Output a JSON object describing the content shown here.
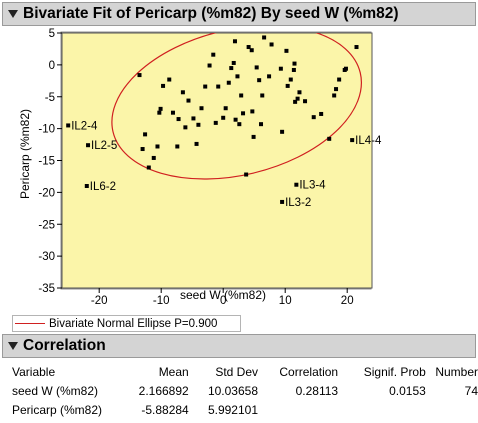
{
  "fit_section": {
    "title": "Bivariate Fit of Pericarp (%m82) By seed W  (%m82)",
    "disclosure_icon": "triangle-down-icon"
  },
  "plot": {
    "background": "#fbf5a9",
    "ellipse_color": "#d02020",
    "point_color": "#000000"
  },
  "chart_data": {
    "type": "scatter",
    "title": "Bivariate Fit of Pericarp (%m82) By seed W  (%m82)",
    "xlabel": "seed W  (%m82)",
    "ylabel": "Pericarp (%m82)",
    "xlim": [
      -26,
      24
    ],
    "ylim": [
      -35,
      5
    ],
    "xticks": [
      -20,
      -10,
      0,
      10,
      20
    ],
    "yticks": [
      -35,
      -30,
      -25,
      -20,
      -15,
      -10,
      -5,
      0,
      5
    ],
    "grid": false,
    "ellipse": {
      "label": "Bivariate Normal Ellipse P=0.900",
      "center": [
        2.17,
        -5.88
      ],
      "semi_major": 20.5,
      "semi_minor": 11.4,
      "angle_deg": 13.5
    },
    "labeled_points": [
      {
        "x": -25.0,
        "y": -9.5,
        "label": "IL2-4"
      },
      {
        "x": -21.8,
        "y": -12.6,
        "label": "IL2-5"
      },
      {
        "x": -22.0,
        "y": -19.0,
        "label": "IL6-2"
      },
      {
        "x": 20.8,
        "y": -11.8,
        "label": "IL4-4"
      },
      {
        "x": 11.8,
        "y": -18.8,
        "label": "IL3-4"
      },
      {
        "x": 9.5,
        "y": -21.5,
        "label": "IL3-2"
      }
    ],
    "points": [
      [
        21.5,
        2.8
      ],
      [
        19.8,
        -0.6
      ],
      [
        19.6,
        -0.8
      ],
      [
        18.7,
        -2.3
      ],
      [
        18.2,
        -3.8
      ],
      [
        17.9,
        -4.8
      ],
      [
        17.1,
        -11.6
      ],
      [
        15.8,
        -7.7
      ],
      [
        14.6,
        -8.2
      ],
      [
        13.2,
        -5.7
      ],
      [
        12.3,
        -4.3
      ],
      [
        12.0,
        -5.3
      ],
      [
        11.6,
        -5.8
      ],
      [
        11.4,
        -0.8
      ],
      [
        11.5,
        0.2
      ],
      [
        10.9,
        -2.3
      ],
      [
        10.4,
        -3.3
      ],
      [
        10.2,
        2.2
      ],
      [
        9.5,
        -10.5
      ],
      [
        9.3,
        -0.6
      ],
      [
        7.8,
        3.2
      ],
      [
        7.4,
        -1.8
      ],
      [
        6.6,
        4.3
      ],
      [
        6.3,
        -4.8
      ],
      [
        6.1,
        -9.3
      ],
      [
        5.8,
        -2.4
      ],
      [
        5.4,
        -0.4
      ],
      [
        4.9,
        -11.3
      ],
      [
        4.7,
        -7.3
      ],
      [
        4.6,
        2.3
      ],
      [
        4.1,
        2.8
      ],
      [
        3.7,
        -17.2
      ],
      [
        3.2,
        -7.6
      ],
      [
        2.9,
        -4.8
      ],
      [
        2.6,
        -9.3
      ],
      [
        2.3,
        -1.8
      ],
      [
        2.0,
        -8.6
      ],
      [
        1.9,
        3.7
      ],
      [
        1.7,
        0.3
      ],
      [
        1.3,
        -0.5
      ],
      [
        0.9,
        -2.8
      ],
      [
        0.4,
        -6.8
      ],
      [
        0.0,
        -8.3
      ],
      [
        -0.8,
        -3.4
      ],
      [
        -1.2,
        -9.1
      ],
      [
        -1.6,
        1.6
      ],
      [
        -2.2,
        -0.1
      ],
      [
        -2.9,
        -3.4
      ],
      [
        -3.5,
        -6.8
      ],
      [
        -4.0,
        -9.4
      ],
      [
        -4.3,
        -12.4
      ],
      [
        -4.8,
        -8.4
      ],
      [
        -5.6,
        -5.6
      ],
      [
        -6.1,
        -9.8
      ],
      [
        -6.5,
        -4.3
      ],
      [
        -7.2,
        -8.5
      ],
      [
        -7.4,
        -12.8
      ],
      [
        -8.1,
        -7.5
      ],
      [
        -8.7,
        -2.3
      ],
      [
        -9.7,
        -3.3
      ],
      [
        -10.1,
        -6.9
      ],
      [
        -10.3,
        -7.5
      ],
      [
        -10.6,
        -12.8
      ],
      [
        -11.2,
        -14.6
      ],
      [
        -12.0,
        -16.1
      ],
      [
        -12.6,
        -10.9
      ],
      [
        -13.0,
        -13.2
      ],
      [
        -13.5,
        -1.6
      ]
    ]
  },
  "legend": {
    "line_color": "#d02020",
    "label": "Bivariate Normal Ellipse P=0.900"
  },
  "correlation_section": {
    "title": "Correlation",
    "disclosure_icon": "triangle-down-icon",
    "headers": [
      "Variable",
      "Mean",
      "Std Dev",
      "Correlation",
      "Signif. Prob",
      "Number"
    ],
    "rows": [
      [
        "seed W  (%m82)",
        "2.166892",
        "10.03658",
        "0.28113",
        "0.0153",
        "74"
      ],
      [
        "Pericarp (%m82)",
        "-5.88284",
        "5.992101",
        "",
        "",
        ""
      ]
    ]
  }
}
